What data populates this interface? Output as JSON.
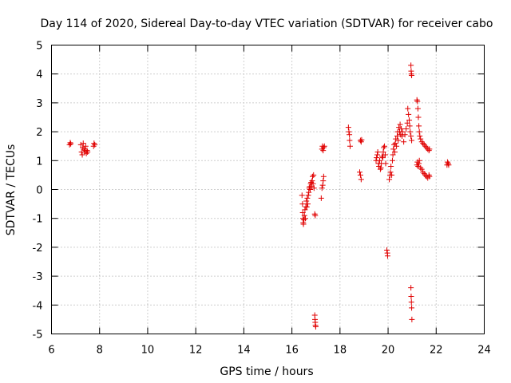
{
  "chart_data": {
    "type": "scatter",
    "title": "Day 114 of 2020, Sidereal Day-to-day VTEC variation (SDTVAR) for receiver cabo",
    "xlabel": "GPS time / hours",
    "ylabel": "SDTVAR / TECUs",
    "xlim": [
      6,
      24
    ],
    "ylim": [
      -5,
      5
    ],
    "x_ticks": [
      6,
      8,
      10,
      12,
      14,
      16,
      18,
      20,
      22,
      24
    ],
    "y_ticks": [
      -5,
      -4,
      -3,
      -2,
      -1,
      0,
      1,
      2,
      3,
      4,
      5
    ],
    "grid": true,
    "marker": "plus",
    "color": "#e00000",
    "series": [
      {
        "name": "SDTVAR",
        "points": [
          [
            6.75,
            1.55
          ],
          [
            6.78,
            1.62
          ],
          [
            6.8,
            1.58
          ],
          [
            7.22,
            1.55
          ],
          [
            7.25,
            1.3
          ],
          [
            7.28,
            1.2
          ],
          [
            7.3,
            1.45
          ],
          [
            7.32,
            1.6
          ],
          [
            7.35,
            1.4
          ],
          [
            7.38,
            1.3
          ],
          [
            7.4,
            1.35
          ],
          [
            7.42,
            1.5
          ],
          [
            7.45,
            1.25
          ],
          [
            7.48,
            1.35
          ],
          [
            7.5,
            1.3
          ],
          [
            7.75,
            1.5
          ],
          [
            7.77,
            1.6
          ],
          [
            7.8,
            1.55
          ],
          [
            16.42,
            -0.2
          ],
          [
            16.44,
            -0.5
          ],
          [
            16.45,
            -0.8
          ],
          [
            16.46,
            -1.0
          ],
          [
            16.47,
            -1.15
          ],
          [
            16.48,
            -1.2
          ],
          [
            16.5,
            -1.05
          ],
          [
            16.52,
            -0.9
          ],
          [
            16.54,
            -0.7
          ],
          [
            16.56,
            -1.0
          ],
          [
            16.58,
            -0.6
          ],
          [
            16.6,
            -0.4
          ],
          [
            16.62,
            -0.6
          ],
          [
            16.64,
            -0.3
          ],
          [
            16.66,
            -0.5
          ],
          [
            16.68,
            -0.2
          ],
          [
            16.7,
            -0.1
          ],
          [
            16.72,
            0.05
          ],
          [
            16.74,
            0.1
          ],
          [
            16.76,
            0.0
          ],
          [
            16.78,
            0.2
          ],
          [
            16.8,
            0.25
          ],
          [
            16.82,
            0.1
          ],
          [
            16.84,
            0.3
          ],
          [
            16.86,
            0.45
          ],
          [
            16.88,
            0.2
          ],
          [
            16.9,
            0.5
          ],
          [
            16.92,
            0.05
          ],
          [
            16.95,
            -0.85
          ],
          [
            16.97,
            -0.9
          ],
          [
            16.95,
            -4.35
          ],
          [
            16.96,
            -4.5
          ],
          [
            16.97,
            -4.6
          ],
          [
            16.98,
            -4.7
          ],
          [
            16.99,
            -4.75
          ],
          [
            17.22,
            -0.3
          ],
          [
            17.25,
            0.05
          ],
          [
            17.28,
            0.15
          ],
          [
            17.3,
            0.3
          ],
          [
            17.32,
            0.45
          ],
          [
            17.25,
            1.4
          ],
          [
            17.27,
            1.5
          ],
          [
            17.3,
            1.35
          ],
          [
            17.32,
            1.45
          ],
          [
            17.35,
            1.5
          ],
          [
            18.35,
            2.15
          ],
          [
            18.37,
            2.0
          ],
          [
            18.39,
            1.9
          ],
          [
            18.4,
            1.7
          ],
          [
            18.42,
            1.5
          ],
          [
            18.85,
            1.7
          ],
          [
            18.88,
            1.65
          ],
          [
            18.9,
            1.72
          ],
          [
            18.82,
            0.6
          ],
          [
            18.85,
            0.5
          ],
          [
            18.88,
            0.35
          ],
          [
            19.5,
            1.0
          ],
          [
            19.52,
            1.1
          ],
          [
            19.55,
            1.2
          ],
          [
            19.57,
            1.3
          ],
          [
            19.6,
            0.9
          ],
          [
            19.62,
            0.8
          ],
          [
            19.65,
            1.0
          ],
          [
            19.68,
            0.7
          ],
          [
            19.7,
            0.75
          ],
          [
            19.72,
            0.9
          ],
          [
            19.75,
            1.15
          ],
          [
            19.78,
            1.1
          ],
          [
            19.8,
            1.3
          ],
          [
            19.82,
            1.45
          ],
          [
            19.85,
            1.5
          ],
          [
            19.88,
            1.2
          ],
          [
            19.9,
            0.9
          ],
          [
            19.95,
            -2.1
          ],
          [
            19.97,
            -2.2
          ],
          [
            19.98,
            -2.3
          ],
          [
            20.05,
            0.35
          ],
          [
            20.08,
            0.5
          ],
          [
            20.1,
            0.6
          ],
          [
            20.12,
            0.8
          ],
          [
            20.15,
            0.5
          ],
          [
            20.18,
            1.0
          ],
          [
            20.2,
            1.2
          ],
          [
            20.22,
            1.4
          ],
          [
            20.25,
            1.55
          ],
          [
            20.28,
            1.3
          ],
          [
            20.3,
            1.6
          ],
          [
            20.32,
            1.75
          ],
          [
            20.35,
            1.5
          ],
          [
            20.38,
            1.85
          ],
          [
            20.4,
            2.0
          ],
          [
            20.42,
            1.7
          ],
          [
            20.45,
            2.15
          ],
          [
            20.48,
            2.0
          ],
          [
            20.5,
            2.25
          ],
          [
            20.52,
            1.9
          ],
          [
            20.55,
            2.1
          ],
          [
            20.58,
            1.85
          ],
          [
            20.6,
            2.0
          ],
          [
            20.65,
            1.65
          ],
          [
            20.7,
            1.9
          ],
          [
            20.75,
            2.1
          ],
          [
            20.8,
            2.3
          ],
          [
            20.82,
            2.8
          ],
          [
            20.85,
            2.6
          ],
          [
            20.88,
            2.4
          ],
          [
            20.9,
            2.2
          ],
          [
            20.92,
            2.0
          ],
          [
            20.95,
            1.85
          ],
          [
            20.98,
            1.7
          ],
          [
            20.95,
            4.3
          ],
          [
            20.96,
            4.1
          ],
          [
            20.97,
            4.0
          ],
          [
            20.98,
            3.95
          ],
          [
            20.95,
            -3.4
          ],
          [
            20.96,
            -3.7
          ],
          [
            20.97,
            -3.9
          ],
          [
            20.98,
            -4.1
          ],
          [
            20.99,
            -4.5
          ],
          [
            21.2,
            3.1
          ],
          [
            21.22,
            3.05
          ],
          [
            21.24,
            2.8
          ],
          [
            21.26,
            2.5
          ],
          [
            21.28,
            2.2
          ],
          [
            21.3,
            2.0
          ],
          [
            21.32,
            1.85
          ],
          [
            21.35,
            1.75
          ],
          [
            21.4,
            1.65
          ],
          [
            21.45,
            1.6
          ],
          [
            21.5,
            1.55
          ],
          [
            21.55,
            1.5
          ],
          [
            21.6,
            1.45
          ],
          [
            21.65,
            1.4
          ],
          [
            21.7,
            1.35
          ],
          [
            21.72,
            1.4
          ],
          [
            21.2,
            0.85
          ],
          [
            21.22,
            0.95
          ],
          [
            21.25,
            0.8
          ],
          [
            21.28,
            0.9
          ],
          [
            21.3,
            1.0
          ],
          [
            21.35,
            0.75
          ],
          [
            21.4,
            0.7
          ],
          [
            21.45,
            0.6
          ],
          [
            21.5,
            0.55
          ],
          [
            21.55,
            0.5
          ],
          [
            21.6,
            0.45
          ],
          [
            21.65,
            0.4
          ],
          [
            21.7,
            0.5
          ],
          [
            21.72,
            0.45
          ],
          [
            22.45,
            0.85
          ],
          [
            22.47,
            0.95
          ],
          [
            22.5,
            0.9
          ],
          [
            22.52,
            0.85
          ]
        ]
      }
    ]
  }
}
